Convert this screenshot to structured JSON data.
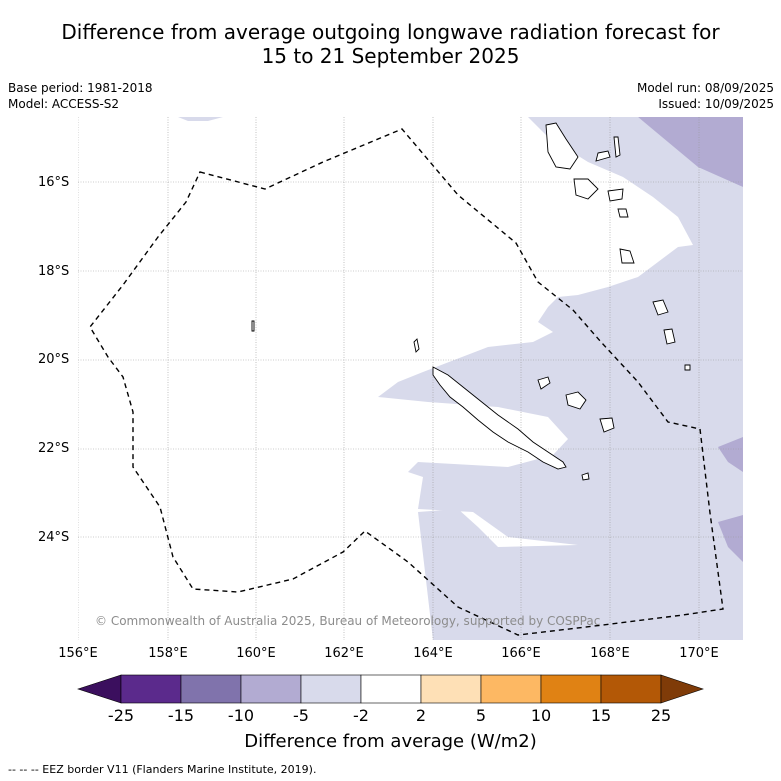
{
  "title_line1": "Difference from average outgoing longwave radiation forecast for",
  "title_line2": "15 to 21 September 2025",
  "base_period": "Base period: 1981-2018",
  "model": "Model: ACCESS-S2",
  "model_run": "Model run: 08/09/2025",
  "issued": "Issued: 10/09/2025",
  "lat_labels": [
    "16°S",
    "18°S",
    "20°S",
    "22°S",
    "24°S"
  ],
  "lon_labels": [
    "156°E",
    "158°E",
    "160°E",
    "162°E",
    "164°E",
    "166°E",
    "168°E",
    "170°E"
  ],
  "copyright": "© Commonwealth of Australia 2025, Bureau of Meteorology, supported by COSPPac",
  "colorbar": {
    "ticks": [
      "-25",
      "-15",
      "-10",
      "-5",
      "-2",
      "2",
      "5",
      "10",
      "15",
      "25"
    ],
    "colors": [
      "#3b0f5e",
      "#5b2a8c",
      "#8073ac",
      "#b2abd2",
      "#d8daeb",
      "#ffffff",
      "#fee0b6",
      "#fdb863",
      "#e08214",
      "#b35806",
      "#7f3b08"
    ],
    "label": "Difference from average (W/m2)"
  },
  "legend": "--  --  -- EEZ border V11 (Flanders Marine Institute, 2019)."
}
